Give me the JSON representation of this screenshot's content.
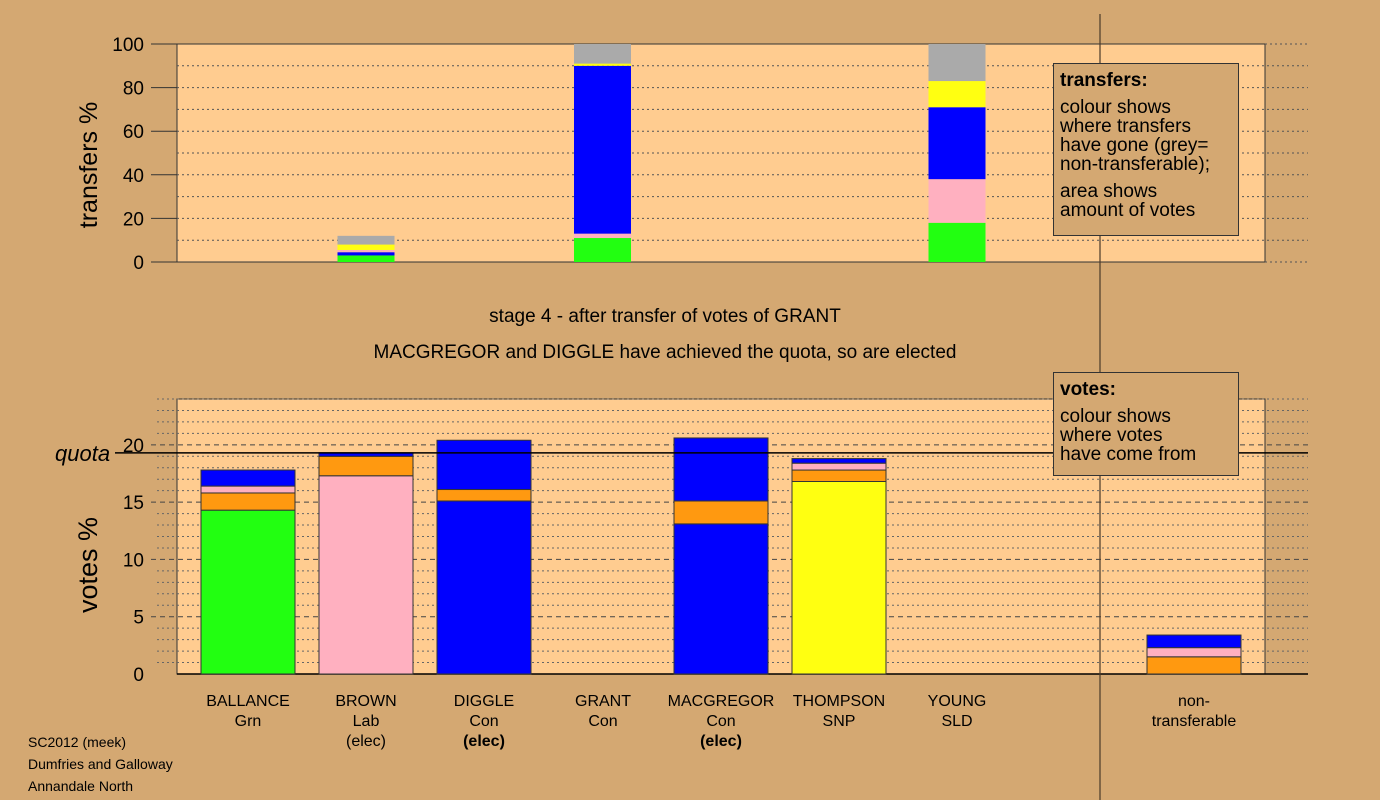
{
  "texts": {
    "stage": "stage 4 - after transfer of votes of GRANT",
    "elected": "MACGREGOR and DIGGLE have achieved the quota, so are elected",
    "quota_label": "quota",
    "transfers_axis": "transfers %",
    "votes_axis": "votes %",
    "footer": [
      "SC2012 (meek)",
      "Dumfries and Galloway",
      "Annandale North"
    ]
  },
  "legend_transfers": {
    "title": "transfers:",
    "para1": [
      "colour shows",
      "where transfers",
      "have gone (grey=",
      "non-transferable);"
    ],
    "para2": [
      "area shows",
      "amount of votes"
    ]
  },
  "legend_votes": {
    "title": "votes:",
    "para1": [
      "colour shows",
      "where votes",
      "have come from"
    ]
  },
  "candidates": [
    {
      "name": "BALLANCE",
      "party": "Grn",
      "elec": ""
    },
    {
      "name": "BROWN",
      "party": "Lab",
      "elec": "(elec)"
    },
    {
      "name": "DIGGLE",
      "party": "Con",
      "elec": "(elec)"
    },
    {
      "name": "GRANT",
      "party": "Con",
      "elec": ""
    },
    {
      "name": "MACGREGOR",
      "party": "Con",
      "elec": "(elec)"
    },
    {
      "name": "THOMPSON",
      "party": "SNP",
      "elec": ""
    },
    {
      "name": "YOUNG",
      "party": "SLD",
      "elec": ""
    },
    {
      "name": "non-",
      "party": "transferable",
      "elec": ""
    }
  ],
  "colors": {
    "green": "#22ff11",
    "pink": "#ffb0c0",
    "blue": "#0000ff",
    "orange": "#ff9910",
    "yellow": "#ffff11",
    "grey": "#aaaaaa",
    "plot_bg": "#ffcc90",
    "page_bg": "#d4a872"
  },
  "chart_data": [
    {
      "type": "bar",
      "ylabel": "transfers %",
      "ylim": [
        0,
        100
      ],
      "yticks": [
        0,
        20,
        40,
        60,
        80,
        100
      ],
      "bars": [
        {
          "slot": 1,
          "segments": [
            {
              "color": "green",
              "from": 0,
              "to": 3
            },
            {
              "color": "blue",
              "from": 3,
              "to": 4.5
            },
            {
              "color": "pink",
              "from": 4.5,
              "to": 5.5
            },
            {
              "color": "yellow",
              "from": 5.5,
              "to": 8
            },
            {
              "color": "grey",
              "from": 8,
              "to": 12
            }
          ]
        },
        {
          "slot": 3,
          "segments": [
            {
              "color": "green",
              "from": 0,
              "to": 11
            },
            {
              "color": "pink",
              "from": 11,
              "to": 13
            },
            {
              "color": "blue",
              "from": 13,
              "to": 90
            },
            {
              "color": "yellow",
              "from": 90,
              "to": 91
            },
            {
              "color": "grey",
              "from": 91,
              "to": 100
            }
          ]
        },
        {
          "slot": 6,
          "segments": [
            {
              "color": "green",
              "from": 0,
              "to": 18
            },
            {
              "color": "pink",
              "from": 18,
              "to": 38
            },
            {
              "color": "blue",
              "from": 38,
              "to": 71
            },
            {
              "color": "yellow",
              "from": 71,
              "to": 83
            },
            {
              "color": "grey",
              "from": 83,
              "to": 100
            }
          ]
        }
      ]
    },
    {
      "type": "bar",
      "ylabel": "votes %",
      "ylim": [
        0,
        24
      ],
      "yticks": [
        0,
        5,
        10,
        15,
        20
      ],
      "quota": 19.3,
      "bars": [
        {
          "slot": 0,
          "segments": [
            {
              "color": "green",
              "from": 0,
              "to": 14.3
            },
            {
              "color": "orange",
              "from": 14.3,
              "to": 15.8
            },
            {
              "color": "pink",
              "from": 15.8,
              "to": 16.4
            },
            {
              "color": "blue",
              "from": 16.4,
              "to": 17.8
            }
          ]
        },
        {
          "slot": 1,
          "segments": [
            {
              "color": "pink",
              "from": 0,
              "to": 17.3
            },
            {
              "color": "orange",
              "from": 17.3,
              "to": 19.0
            },
            {
              "color": "blue",
              "from": 19.0,
              "to": 19.3
            }
          ]
        },
        {
          "slot": 2,
          "segments": [
            {
              "color": "blue",
              "from": 0,
              "to": 15.1
            },
            {
              "color": "orange",
              "from": 15.1,
              "to": 16.1
            },
            {
              "color": "blue",
              "from": 16.1,
              "to": 20.4
            }
          ]
        },
        {
          "slot": 4,
          "segments": [
            {
              "color": "blue",
              "from": 0,
              "to": 13.1
            },
            {
              "color": "orange",
              "from": 13.1,
              "to": 15.1
            },
            {
              "color": "blue",
              "from": 15.1,
              "to": 20.6
            }
          ]
        },
        {
          "slot": 5,
          "segments": [
            {
              "color": "yellow",
              "from": 0,
              "to": 16.8
            },
            {
              "color": "orange",
              "from": 16.8,
              "to": 17.8
            },
            {
              "color": "pink",
              "from": 17.8,
              "to": 18.4
            },
            {
              "color": "blue",
              "from": 18.4,
              "to": 18.8
            }
          ]
        },
        {
          "slot": 7,
          "segments": [
            {
              "color": "orange",
              "from": 0,
              "to": 1.5
            },
            {
              "color": "pink",
              "from": 1.5,
              "to": 2.3
            },
            {
              "color": "blue",
              "from": 2.3,
              "to": 3.4
            }
          ]
        }
      ]
    }
  ]
}
